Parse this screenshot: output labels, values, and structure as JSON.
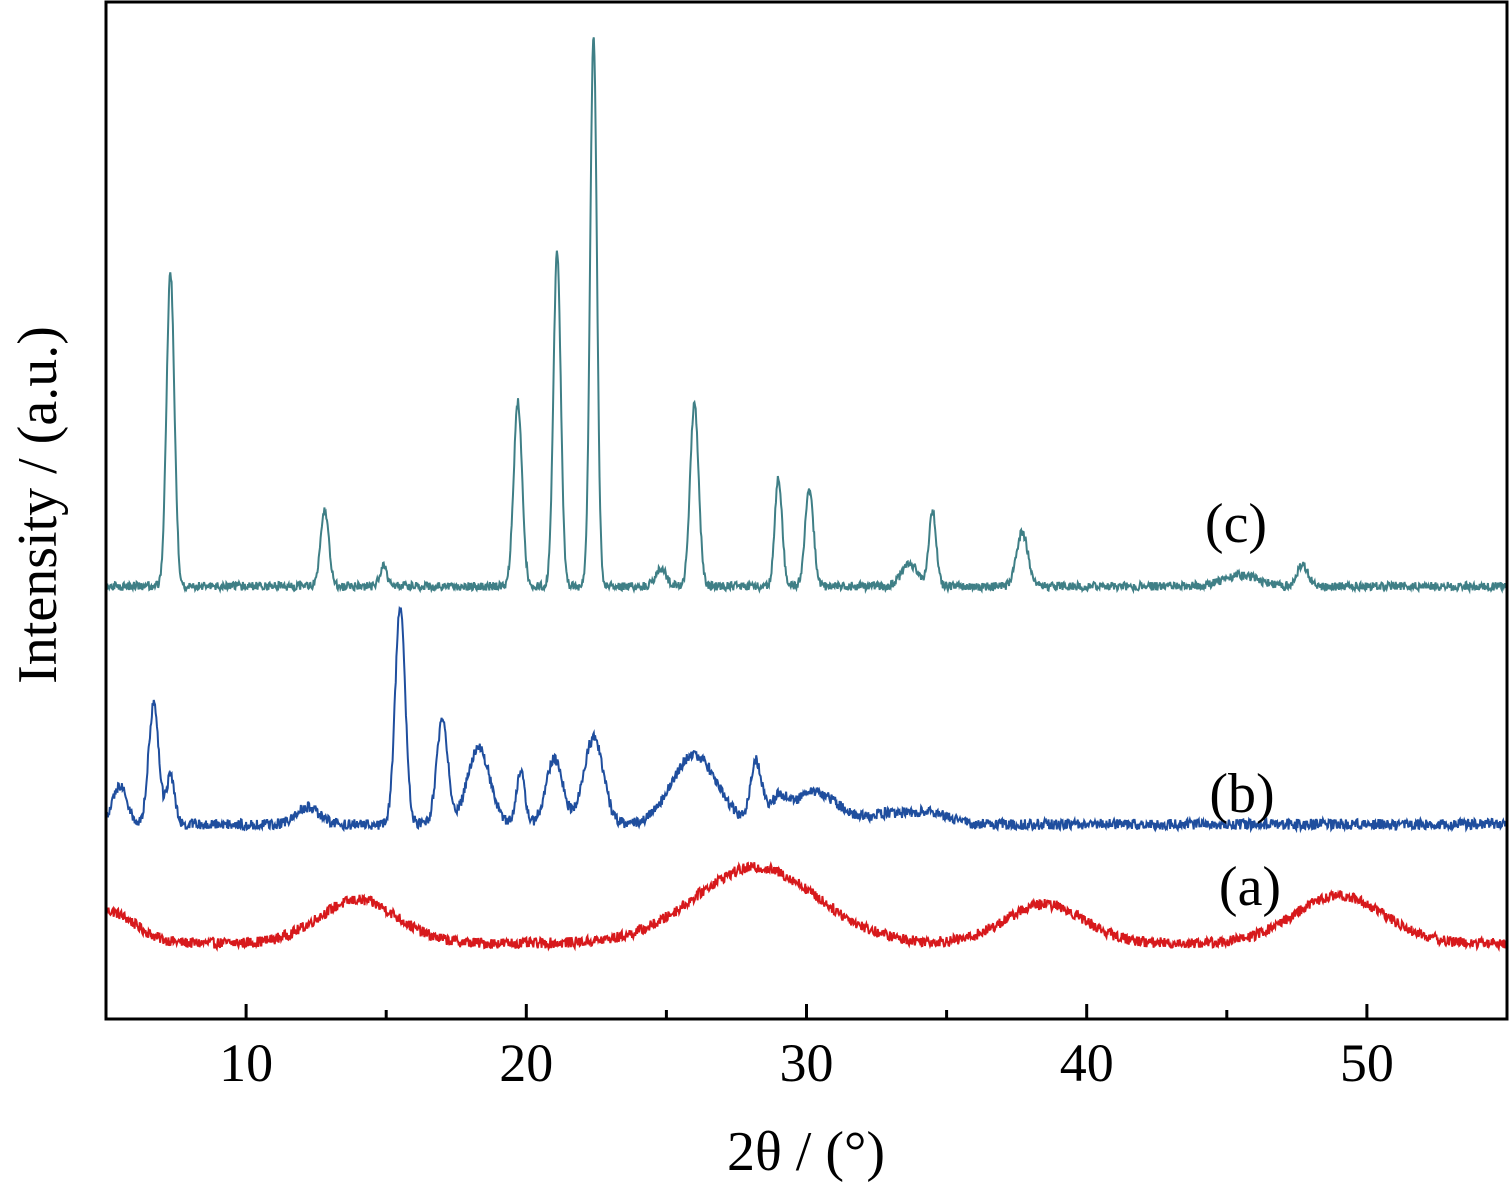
{
  "chart_data": {
    "type": "line",
    "xlabel": "2θ / (°)",
    "ylabel": "Intensity / (a.u.)",
    "xlim": [
      5,
      55
    ],
    "x_ticks": [
      10,
      20,
      30,
      40,
      50
    ],
    "y_ticks_shown": false,
    "grid": false,
    "legend": "none",
    "series": [
      {
        "name": "(a)",
        "color": "#d7191c",
        "baseline": 0.0,
        "noise": 0.05,
        "peaks": [
          [
            5.0,
            0.15,
            1.0
          ],
          [
            14.0,
            0.2,
            1.4
          ],
          [
            28.2,
            0.35,
            2.2
          ],
          [
            38.5,
            0.18,
            1.4
          ],
          [
            49.0,
            0.22,
            1.6
          ]
        ],
        "points": [
          [
            5,
            0.2
          ],
          [
            8,
            0.06
          ],
          [
            11,
            0.02
          ],
          [
            13,
            0.12
          ],
          [
            14,
            0.2
          ],
          [
            15.5,
            0.08
          ],
          [
            18,
            0.02
          ],
          [
            22,
            0.02
          ],
          [
            25,
            0.1
          ],
          [
            28.2,
            0.35
          ],
          [
            31,
            0.12
          ],
          [
            34,
            0.0
          ],
          [
            38.5,
            0.18
          ],
          [
            40,
            0.0
          ],
          [
            45,
            -0.04
          ],
          [
            49,
            0.22
          ],
          [
            51,
            0.03
          ],
          [
            55,
            -0.06
          ]
        ]
      },
      {
        "name": "(b)",
        "color": "#1f4e9e",
        "baseline": 0.55,
        "noise": 0.05,
        "peaks": [
          [
            5.5,
            0.18,
            0.25
          ],
          [
            6.7,
            0.55,
            0.18
          ],
          [
            7.3,
            0.22,
            0.15
          ],
          [
            12.2,
            0.08,
            0.4
          ],
          [
            15.5,
            1.0,
            0.18
          ],
          [
            17.0,
            0.48,
            0.2
          ],
          [
            18.3,
            0.35,
            0.4
          ],
          [
            19.8,
            0.25,
            0.15
          ],
          [
            21.0,
            0.3,
            0.3
          ],
          [
            22.4,
            0.4,
            0.35
          ],
          [
            26.0,
            0.32,
            0.8
          ],
          [
            28.2,
            0.28,
            0.2
          ],
          [
            29.0,
            0.1,
            0.3
          ],
          [
            30.3,
            0.15,
            0.8
          ],
          [
            33.0,
            0.05,
            0.8
          ],
          [
            34.5,
            0.05,
            0.6
          ]
        ],
        "points": [
          [
            5,
            0.55
          ],
          [
            5.5,
            0.72
          ],
          [
            6.7,
            1.1
          ],
          [
            7.3,
            0.78
          ],
          [
            9,
            0.55
          ],
          [
            12.2,
            0.62
          ],
          [
            15.5,
            1.55
          ],
          [
            17.0,
            1.03
          ],
          [
            18.3,
            0.9
          ],
          [
            19.8,
            0.8
          ],
          [
            21.0,
            0.85
          ],
          [
            22.4,
            0.95
          ],
          [
            26.0,
            0.87
          ],
          [
            28.2,
            0.83
          ],
          [
            30.3,
            0.7
          ],
          [
            33,
            0.59
          ],
          [
            35,
            0.55
          ],
          [
            55,
            0.52
          ]
        ]
      },
      {
        "name": "(c)",
        "color": "#3f7f86",
        "baseline": 1.65,
        "noise": 0.04,
        "peaks": [
          [
            7.3,
            1.45,
            0.14
          ],
          [
            12.8,
            0.35,
            0.15
          ],
          [
            14.9,
            0.1,
            0.12
          ],
          [
            19.7,
            0.85,
            0.15
          ],
          [
            21.1,
            1.55,
            0.13
          ],
          [
            22.4,
            2.55,
            0.12
          ],
          [
            24.8,
            0.08,
            0.2
          ],
          [
            26.0,
            0.85,
            0.15
          ],
          [
            29.0,
            0.5,
            0.13
          ],
          [
            30.1,
            0.45,
            0.15
          ],
          [
            33.7,
            0.1,
            0.3
          ],
          [
            34.5,
            0.35,
            0.13
          ],
          [
            37.7,
            0.25,
            0.2
          ],
          [
            45.5,
            0.05,
            0.6
          ],
          [
            47.7,
            0.1,
            0.2
          ]
        ],
        "points": [
          [
            5,
            1.65
          ],
          [
            7.3,
            3.1
          ],
          [
            12.8,
            2.0
          ],
          [
            19.7,
            2.5
          ],
          [
            21.1,
            3.2
          ],
          [
            22.4,
            4.2
          ],
          [
            26.0,
            2.5
          ],
          [
            29.0,
            2.15
          ],
          [
            30.1,
            2.1
          ],
          [
            34.5,
            2.0
          ],
          [
            37.7,
            1.9
          ],
          [
            47.7,
            1.75
          ],
          [
            55,
            1.65
          ]
        ]
      }
    ]
  }
}
